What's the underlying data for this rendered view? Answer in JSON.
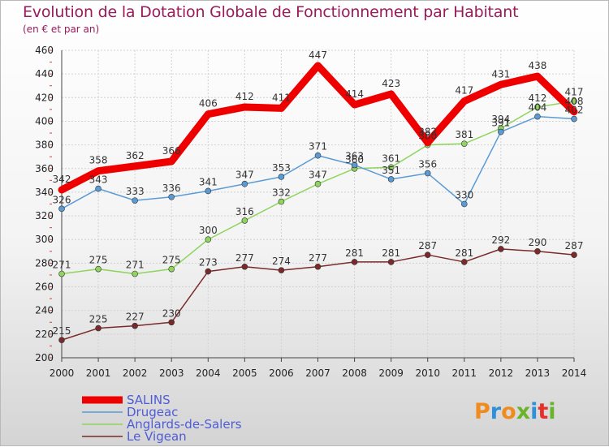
{
  "header": {
    "title": "Evolution de la Dotation Globale de Fonctionnement par Habitant",
    "subtitle": "(en € et par an)"
  },
  "brand": {
    "logo_text": "Proxiti"
  },
  "chart_data": {
    "type": "line",
    "title": "Evolution de la Dotation Globale de Fonctionnement par Habitant",
    "subtitle": "(en € et par an)",
    "xlabel": "",
    "ylabel": "",
    "x": [
      "2000",
      "2001",
      "2002",
      "2003",
      "2004",
      "2005",
      "2006",
      "2007",
      "2008",
      "2009",
      "2010",
      "2011",
      "2012",
      "2013",
      "2014"
    ],
    "ylim": [
      200,
      460
    ],
    "yticks": [
      200,
      220,
      240,
      260,
      280,
      300,
      320,
      340,
      360,
      380,
      400,
      420,
      440,
      460
    ],
    "grid": true,
    "legend_position": "bottom-left",
    "series": [
      {
        "name": "Le Vigean",
        "color": "#7a2a2a",
        "values": [
          215,
          225,
          227,
          230,
          273,
          277,
          274,
          277,
          281,
          281,
          287,
          281,
          292,
          290,
          287
        ]
      },
      {
        "name": "Anglards-de-Salers",
        "color": "#8fd45e",
        "values": [
          271,
          275,
          271,
          275,
          300,
          316,
          332,
          347,
          360,
          361,
          380,
          381,
          394,
          412,
          417
        ]
      },
      {
        "name": "Drugeac",
        "color": "#5b9bd5",
        "values": [
          326,
          343,
          333,
          336,
          341,
          347,
          353,
          371,
          363,
          351,
          356,
          330,
          391,
          404,
          402
        ]
      },
      {
        "name": "SALINS",
        "color": "#ee0000",
        "values": [
          342,
          358,
          362,
          366,
          406,
          412,
          411,
          447,
          414,
          423,
          382,
          417,
          431,
          438,
          408
        ]
      }
    ],
    "legend_order": [
      "SALINS",
      "Drugeac",
      "Anglards-de-Salers",
      "Le Vigean"
    ]
  }
}
